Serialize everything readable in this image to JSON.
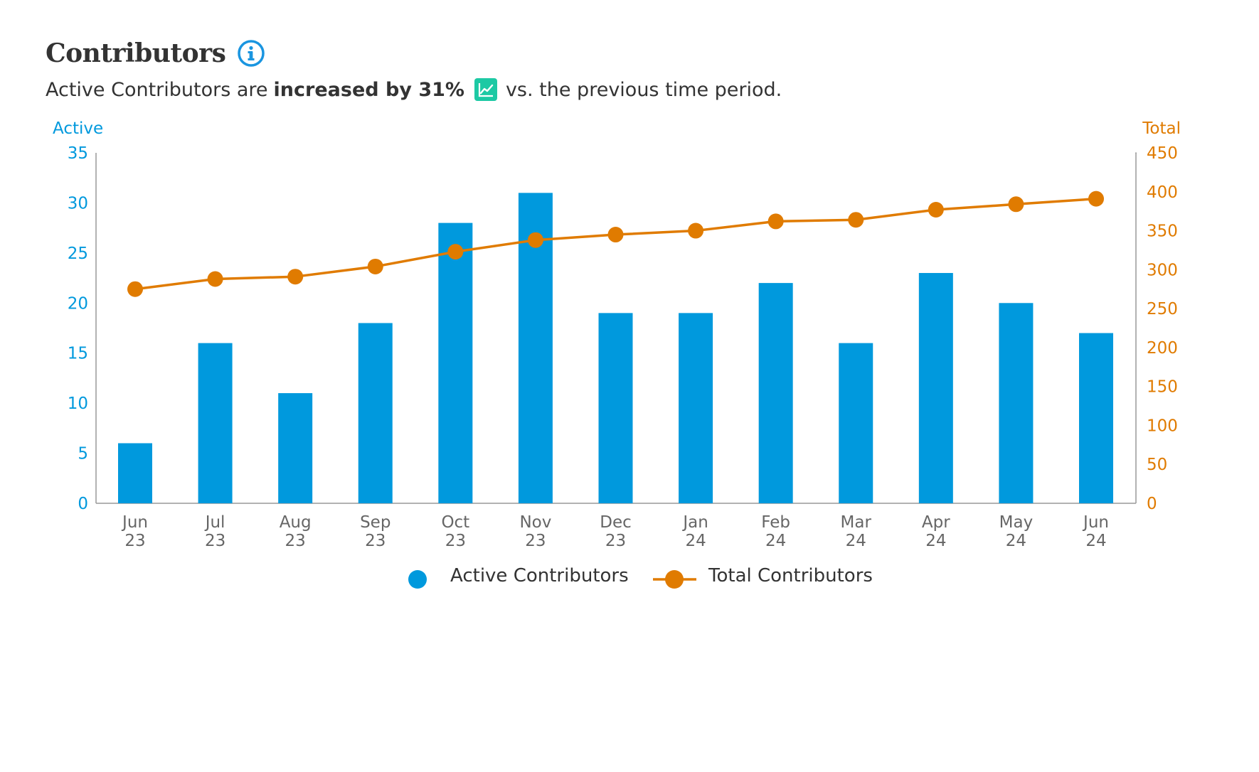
{
  "header": {
    "title": "Contributors",
    "summary_prefix": "Active Contributors are",
    "summary_bold": "increased by 31%",
    "summary_suffix": "vs. the previous time period."
  },
  "colors": {
    "active": "#0099DD",
    "total": "#E07B00",
    "axis": "#999999",
    "tick_text": "#666666",
    "trend_icon_bg": "#1DC9A4",
    "info_icon": "#1A95E0"
  },
  "icons": {
    "info": "info-circle-icon",
    "trend": "trending-up-chart-icon"
  },
  "chart_data": {
    "type": "bar",
    "categories": [
      [
        "Jun",
        "23"
      ],
      [
        "Jul",
        "23"
      ],
      [
        "Aug",
        "23"
      ],
      [
        "Sep",
        "23"
      ],
      [
        "Oct",
        "23"
      ],
      [
        "Nov",
        "23"
      ],
      [
        "Dec",
        "23"
      ],
      [
        "Jan",
        "24"
      ],
      [
        "Feb",
        "24"
      ],
      [
        "Mar",
        "24"
      ],
      [
        "Apr",
        "24"
      ],
      [
        "May",
        "24"
      ],
      [
        "Jun",
        "24"
      ]
    ],
    "series": [
      {
        "name": "Active Contributors",
        "type": "bar",
        "axis": "left",
        "values": [
          6,
          16,
          11,
          18,
          28,
          31,
          19,
          19,
          22,
          16,
          23,
          20,
          17
        ]
      },
      {
        "name": "Total Contributors",
        "type": "line",
        "axis": "right",
        "values": [
          275,
          288,
          291,
          304,
          323,
          338,
          345,
          350,
          362,
          364,
          377,
          384,
          391
        ]
      }
    ],
    "left_axis": {
      "label": "Active",
      "min": 0,
      "max": 35,
      "ticks": [
        0,
        5,
        10,
        15,
        20,
        25,
        30,
        35
      ]
    },
    "right_axis": {
      "label": "Total",
      "min": 0,
      "max": 450,
      "ticks": [
        0,
        50,
        100,
        150,
        200,
        250,
        300,
        350,
        400,
        450
      ]
    },
    "grid": false,
    "legend_position": "bottom"
  }
}
